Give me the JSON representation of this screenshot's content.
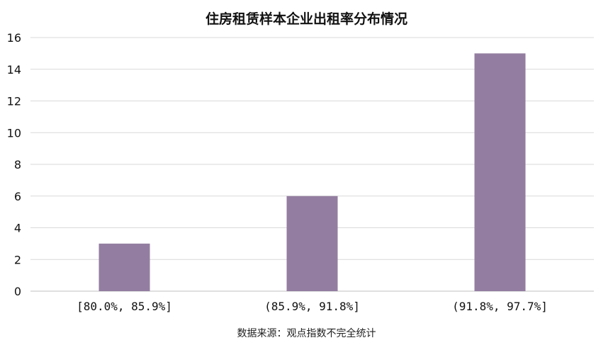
{
  "chart_data": {
    "type": "bar",
    "title": "住房租赁样本企业出租率分布情况",
    "categories": [
      "[80.0%, 85.9%]",
      "(85.9%, 91.8%]",
      "(91.8%, 97.7%]"
    ],
    "values": [
      3,
      6,
      15
    ],
    "ylim": [
      0,
      16
    ],
    "yticks": [
      0,
      2,
      4,
      6,
      8,
      10,
      12,
      14,
      16
    ],
    "grid": true,
    "bar_color": "#937ea1",
    "source": "数据来源：观点指数不完全统计"
  }
}
